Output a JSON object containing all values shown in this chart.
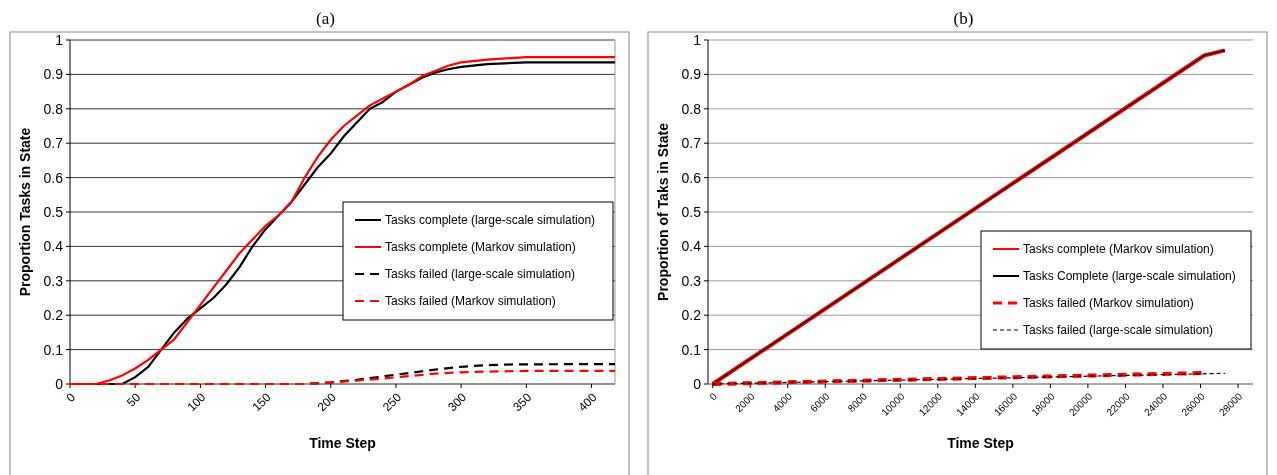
{
  "chart_data": [
    {
      "type": "line",
      "title": "(a)",
      "xlabel": "Time Step",
      "ylabel": "Proportion Tasks in State",
      "xlim": [
        0,
        418
      ],
      "ylim": [
        0,
        1
      ],
      "xticks": [
        0,
        50,
        100,
        150,
        200,
        250,
        300,
        350,
        400
      ],
      "yticks": [
        0,
        0.1,
        0.2,
        0.3,
        0.4,
        0.5,
        0.6,
        0.7,
        0.8,
        0.9,
        1
      ],
      "grid": "y",
      "legend": "right",
      "marker": "none",
      "series": [
        {
          "name": "Tasks complete (large-scale simulation)",
          "color": "#000000",
          "line_style": "solid",
          "x": [
            0,
            40,
            50,
            60,
            70,
            80,
            90,
            100,
            110,
            120,
            130,
            140,
            150,
            160,
            170,
            180,
            190,
            200,
            210,
            220,
            230,
            240,
            250,
            260,
            270,
            280,
            290,
            300,
            320,
            350,
            418
          ],
          "values": [
            0,
            0,
            0.02,
            0.05,
            0.1,
            0.15,
            0.19,
            0.22,
            0.25,
            0.29,
            0.34,
            0.4,
            0.45,
            0.49,
            0.53,
            0.58,
            0.63,
            0.67,
            0.72,
            0.76,
            0.8,
            0.82,
            0.85,
            0.87,
            0.89,
            0.905,
            0.915,
            0.922,
            0.93,
            0.935,
            0.935
          ]
        },
        {
          "name": "Tasks complete (Markov simulation)",
          "color": "#ff0000",
          "line_style": "solid",
          "x": [
            0,
            20,
            30,
            40,
            50,
            60,
            70,
            80,
            90,
            100,
            110,
            120,
            130,
            140,
            150,
            160,
            170,
            180,
            190,
            200,
            210,
            220,
            230,
            240,
            250,
            260,
            270,
            280,
            290,
            300,
            320,
            350,
            418
          ],
          "values": [
            0,
            0,
            0.01,
            0.025,
            0.045,
            0.07,
            0.1,
            0.13,
            0.18,
            0.23,
            0.28,
            0.33,
            0.38,
            0.42,
            0.46,
            0.49,
            0.53,
            0.6,
            0.66,
            0.71,
            0.75,
            0.78,
            0.81,
            0.83,
            0.85,
            0.87,
            0.895,
            0.91,
            0.925,
            0.935,
            0.943,
            0.95,
            0.95
          ]
        },
        {
          "name": "Tasks failed (large-scale simulation)",
          "color": "#000000",
          "line_style": "dashed",
          "x": [
            0,
            180,
            200,
            220,
            240,
            260,
            280,
            300,
            320,
            340,
            418
          ],
          "values": [
            0,
            0,
            0.005,
            0.012,
            0.022,
            0.032,
            0.042,
            0.05,
            0.055,
            0.057,
            0.058
          ]
        },
        {
          "name": "Tasks failed (Markov simulation)",
          "color": "#ff0000",
          "line_style": "dashed",
          "x": [
            0,
            180,
            200,
            220,
            240,
            260,
            280,
            300,
            320,
            350,
            418
          ],
          "values": [
            0,
            0,
            0.004,
            0.01,
            0.016,
            0.023,
            0.03,
            0.034,
            0.036,
            0.038,
            0.038
          ]
        }
      ]
    },
    {
      "type": "line",
      "title": "(b)",
      "xlabel": "Time Step",
      "ylabel": "Proportion of Taks in State",
      "xlim": [
        -250,
        28800
      ],
      "ylim": [
        0,
        1
      ],
      "xticks": [
        0,
        2000,
        4000,
        6000,
        8000,
        10000,
        12000,
        14000,
        16000,
        18000,
        20000,
        22000,
        24000,
        26000,
        28000
      ],
      "yticks": [
        0,
        0.1,
        0.2,
        0.3,
        0.4,
        0.5,
        0.6,
        0.7,
        0.8,
        0.9,
        1
      ],
      "grid": "y",
      "legend": "bottom right",
      "marker": "none",
      "series": [
        {
          "name": "Tasks complete (Markov simulation)",
          "color": "#ff0000",
          "line_style": "solid",
          "x": [
            0,
            26200,
            27300
          ],
          "values": [
            0,
            0.955,
            0.97
          ]
        },
        {
          "name": "Tasks Complete (large-scale simulation)",
          "color": "#000000",
          "line_style": "solid",
          "x": [
            0,
            26200,
            27300
          ],
          "values": [
            0,
            0.955,
            0.97
          ]
        },
        {
          "name": "Tasks failed (Markov simulation)",
          "color": "#ff0000",
          "line_style": "dashed",
          "x": [
            0,
            26200
          ],
          "values": [
            0,
            0.032
          ]
        },
        {
          "name": "Tasks failed (large-scale simulation)",
          "color": "#000000",
          "line_style": "dotted",
          "x": [
            0,
            27300
          ],
          "values": [
            0,
            0.031
          ]
        }
      ]
    }
  ]
}
